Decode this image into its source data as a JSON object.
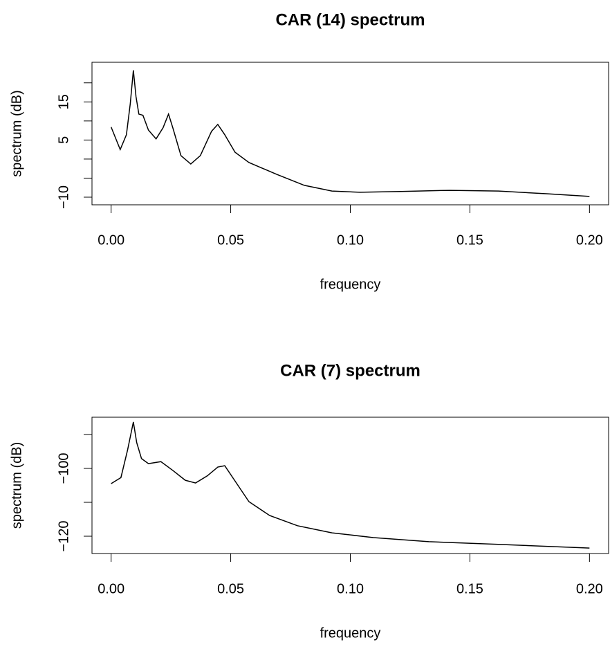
{
  "chart_data": [
    {
      "type": "line",
      "title": "CAR (14) spectrum",
      "xlabel": "frequency",
      "ylabel": "spectrum (dB)",
      "x": [
        0,
        0.0038,
        0.0064,
        0.008,
        0.0093,
        0.0104,
        0.0116,
        0.0133,
        0.0156,
        0.0188,
        0.0217,
        0.024,
        0.0258,
        0.0292,
        0.0333,
        0.0373,
        0.042,
        0.0446,
        0.0475,
        0.0518,
        0.0576,
        0.0692,
        0.0808,
        0.0923,
        0.104,
        0.121,
        0.1415,
        0.162,
        0.182,
        0.2
      ],
      "values": [
        8.4,
        2.5,
        6.4,
        14.5,
        23.3,
        16.4,
        11.8,
        11.5,
        7.6,
        5.3,
        8.2,
        11.8,
        8.2,
        0.9,
        -1.3,
        0.9,
        7.3,
        9.1,
        6.4,
        1.8,
        -0.9,
        -4,
        -6.9,
        -8.4,
        -8.7,
        -8.5,
        -8.2,
        -8.4,
        -9.1,
        -9.8
      ],
      "color": "#000000",
      "xlim": [
        -0.008,
        0.208
      ],
      "xticks": [
        {
          "value": 0,
          "label": "0.00"
        },
        0.05,
        {
          "value": 0.1,
          "label": "0.10"
        },
        0.15,
        {
          "value": 0.2,
          "label": "0.20"
        }
      ],
      "ylim": [
        -12,
        25.4
      ],
      "yticks": [
        {
          "value": -10,
          "label": "−10"
        },
        {
          "value": -5
        },
        {
          "value": 0
        },
        5,
        {
          "value": 10
        },
        15,
        {
          "value": 20
        }
      ]
    },
    {
      "type": "line",
      "title": "CAR (7) spectrum",
      "xlabel": "frequency",
      "ylabel": "spectrum (dB)",
      "x": [
        0,
        0.0041,
        0.0069,
        0.0093,
        0.0107,
        0.0127,
        0.0156,
        0.0208,
        0.0258,
        0.031,
        0.0353,
        0.0402,
        0.0446,
        0.0475,
        0.0518,
        0.0576,
        0.0663,
        0.0779,
        0.0923,
        0.1097,
        0.1328,
        0.1618,
        0.2
      ],
      "values": [
        -104.5,
        -102.7,
        -94.5,
        -86.3,
        -92.4,
        -97.1,
        -98.6,
        -98,
        -100.6,
        -103.5,
        -104.3,
        -102.2,
        -99.6,
        -99.2,
        -103.7,
        -109.8,
        -113.9,
        -116.9,
        -119,
        -120.4,
        -121.6,
        -122.4,
        -123.5
      ],
      "color": "#000000",
      "xlim": [
        -0.008,
        0.208
      ],
      "xticks": [
        {
          "value": 0,
          "label": "0.00"
        },
        0.05,
        {
          "value": 0.1,
          "label": "0.10"
        },
        0.15,
        {
          "value": 0.2,
          "label": "0.20"
        }
      ],
      "ylim": [
        -125.1,
        -84.9
      ],
      "yticks": [
        {
          "value": -120,
          "label": "−120"
        },
        {
          "value": -110
        },
        {
          "value": -100,
          "label": "−100"
        },
        {
          "value": -90
        }
      ]
    }
  ]
}
